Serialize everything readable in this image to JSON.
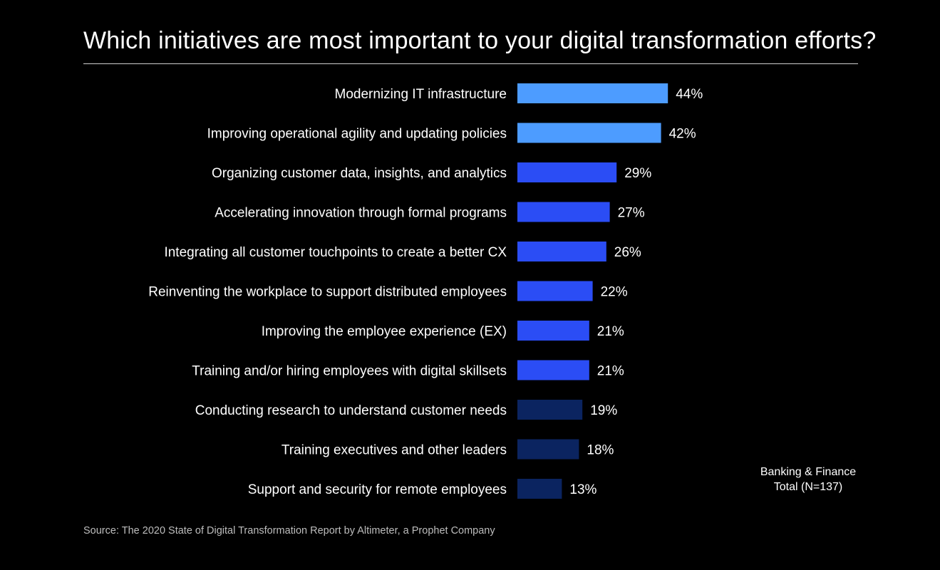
{
  "title": "Which initiatives are most important to your digital transformation efforts?",
  "note": {
    "line1": "Banking & Finance",
    "line2": "Total (N=137)"
  },
  "source": "Source: The 2020 State of Digital Transformation Report by Altimeter, a Prophet Company",
  "colors": {
    "light": "#4d9cff",
    "mid": "#2b4df5",
    "dark": "#0b2460"
  },
  "chart_data": {
    "type": "bar",
    "orientation": "horizontal",
    "title": "Which initiatives are most important to your digital transformation efforts?",
    "categories": [
      "Modernizing IT infrastructure",
      "Improving operational agility and updating policies",
      "Organizing customer data, insights, and analytics",
      "Accelerating innovation through formal programs",
      "Integrating all customer touchpoints to create a better CX",
      "Reinventing the workplace to support distributed employees",
      "Improving the employee experience (EX)",
      "Training and/or hiring employees with digital skillsets",
      "Conducting research to understand customer needs",
      "Training executives and other leaders",
      "Support and security for remote employees"
    ],
    "values": [
      44,
      42,
      29,
      27,
      26,
      22,
      21,
      21,
      19,
      18,
      13
    ],
    "value_labels": [
      "44%",
      "42%",
      "29%",
      "27%",
      "26%",
      "22%",
      "21%",
      "21%",
      "19%",
      "18%",
      "13%"
    ],
    "bar_colors": [
      "#4d9cff",
      "#4d9cff",
      "#2b4df5",
      "#2b4df5",
      "#2b4df5",
      "#2b4df5",
      "#2b4df5",
      "#2b4df5",
      "#0b2460",
      "#0b2460",
      "#0b2460"
    ],
    "xlim": [
      0,
      100
    ],
    "grid": false,
    "legend": false
  }
}
